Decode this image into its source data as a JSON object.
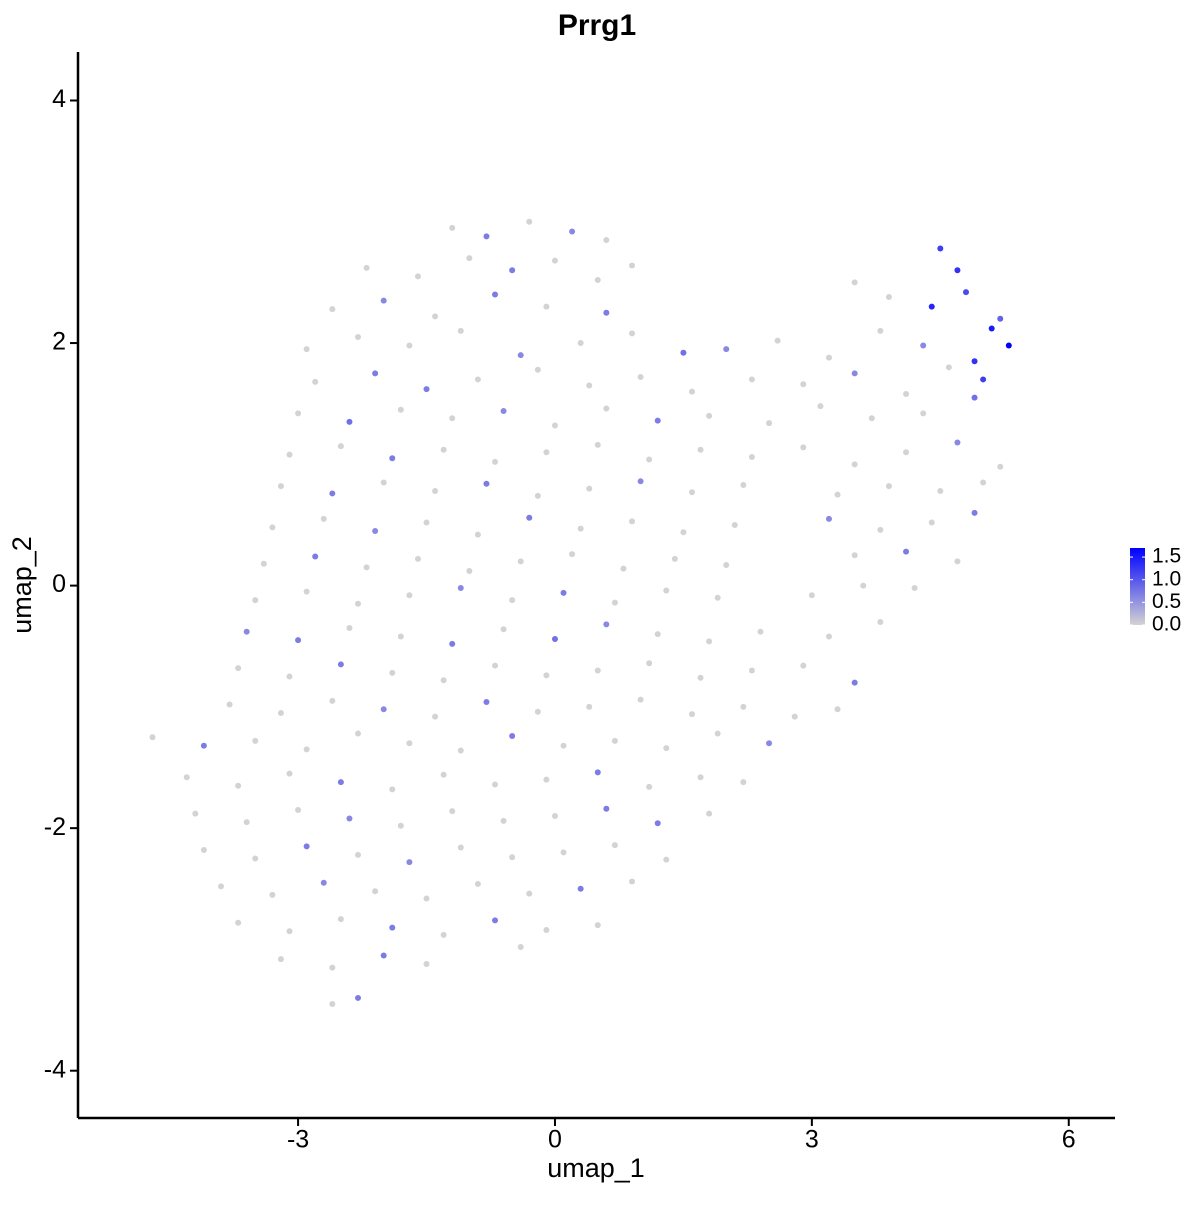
{
  "chart_data": {
    "type": "scatter",
    "title": "Prrg1",
    "x_label": "umap_1",
    "y_label": "umap_2",
    "xlim": [
      -5.57,
      6.54
    ],
    "ylim": [
      -4.39,
      4.4
    ],
    "xticks": [
      -3,
      0,
      3,
      6
    ],
    "yticks": [
      -4,
      -2,
      0,
      2,
      4
    ],
    "color_low": "#d3d3d3",
    "color_high": "#0000ff",
    "color_lim": [
      0,
      1.7
    ],
    "color_ticks": [
      {
        "value": 0,
        "label": "0.0"
      },
      {
        "value": 0.5,
        "label": "0.5"
      },
      {
        "value": 1,
        "label": "1.0"
      },
      {
        "value": 1.5,
        "label": "1.5"
      }
    ],
    "x": [
      -1.2,
      -0.8,
      -0.3,
      0.2,
      0.6,
      -2.2,
      -1.6,
      -1.0,
      -0.5,
      0.0,
      0.5,
      0.9,
      4.5,
      4.7,
      -2.6,
      -2.0,
      -1.4,
      -0.7,
      -0.1,
      0.6,
      3.5,
      3.9,
      4.4,
      4.8,
      5.2,
      -2.9,
      -2.3,
      -1.7,
      -1.1,
      -0.4,
      0.3,
      0.9,
      1.5,
      2.0,
      2.6,
      3.2,
      3.8,
      4.3,
      4.9,
      5.3,
      5.1,
      -2.8,
      -2.1,
      -1.5,
      -0.9,
      -0.2,
      0.4,
      1.0,
      1.6,
      2.3,
      2.9,
      3.5,
      4.1,
      4.6,
      5.0,
      -3.0,
      -2.4,
      -1.8,
      -1.2,
      -0.6,
      0.0,
      0.6,
      1.2,
      1.8,
      2.5,
      3.1,
      3.7,
      4.3,
      4.9,
      -3.1,
      -2.5,
      -1.9,
      -1.3,
      -0.7,
      -0.1,
      0.5,
      1.1,
      1.7,
      2.3,
      2.9,
      3.5,
      4.1,
      4.7,
      5.2,
      -3.2,
      -2.6,
      -2.0,
      -1.4,
      -0.8,
      -0.2,
      0.4,
      1.0,
      1.6,
      2.2,
      3.3,
      3.9,
      4.5,
      5.0,
      -3.3,
      -2.7,
      -2.1,
      -1.5,
      -0.9,
      -0.3,
      0.3,
      0.9,
      1.5,
      2.1,
      3.2,
      3.8,
      4.4,
      4.9,
      -3.4,
      -2.8,
      -2.2,
      -1.6,
      -1.0,
      -0.4,
      0.2,
      0.8,
      1.4,
      2.0,
      3.5,
      4.1,
      4.7,
      -3.5,
      -2.9,
      -2.3,
      -1.7,
      -1.1,
      -0.5,
      0.1,
      0.7,
      1.3,
      1.9,
      3.0,
      3.6,
      4.2,
      -3.6,
      -3.0,
      -2.4,
      -1.8,
      -1.2,
      -0.6,
      0.0,
      0.6,
      1.2,
      1.8,
      2.4,
      3.2,
      3.8,
      -3.7,
      -3.1,
      -2.5,
      -1.9,
      -1.3,
      -0.7,
      -0.1,
      0.5,
      1.1,
      1.7,
      2.3,
      2.9,
      3.5,
      -3.8,
      -3.2,
      -2.6,
      -2.0,
      -1.4,
      -0.8,
      -0.2,
      0.4,
      1.0,
      1.6,
      2.2,
      2.8,
      3.3,
      -4.7,
      -4.1,
      -3.5,
      -2.9,
      -2.3,
      -1.7,
      -1.1,
      -0.5,
      0.1,
      0.7,
      1.3,
      1.9,
      2.5,
      -4.3,
      -3.7,
      -3.1,
      -2.5,
      -1.9,
      -1.3,
      -0.7,
      -0.1,
      0.5,
      1.1,
      1.7,
      2.2,
      -4.2,
      -3.6,
      -3.0,
      -2.4,
      -1.8,
      -1.2,
      -0.6,
      0.0,
      0.6,
      1.2,
      1.8,
      -4.1,
      -3.5,
      -2.9,
      -2.3,
      -1.7,
      -1.1,
      -0.5,
      0.1,
      0.7,
      1.3,
      -3.9,
      -3.3,
      -2.7,
      -2.1,
      -1.5,
      -0.9,
      -0.3,
      0.3,
      0.9,
      -3.7,
      -3.1,
      -2.5,
      -1.9,
      -1.3,
      -0.7,
      -0.1,
      0.5,
      -3.2,
      -2.6,
      -2.0,
      -1.5,
      -0.4,
      -2.6,
      -2.3
    ],
    "values": [
      2.95,
      2.88,
      3.0,
      2.92,
      2.85,
      2.62,
      2.55,
      2.7,
      2.6,
      2.68,
      2.52,
      2.64,
      2.78,
      2.6,
      2.28,
      2.35,
      2.22,
      2.4,
      2.3,
      2.25,
      2.5,
      2.38,
      2.3,
      2.42,
      2.2,
      1.95,
      2.05,
      1.98,
      2.1,
      1.9,
      2.0,
      2.08,
      1.92,
      1.95,
      2.02,
      1.88,
      2.1,
      1.98,
      1.85,
      1.98,
      2.12,
      1.68,
      1.75,
      1.62,
      1.7,
      1.78,
      1.65,
      1.72,
      1.6,
      1.7,
      1.66,
      1.75,
      1.58,
      1.8,
      1.7,
      1.42,
      1.35,
      1.45,
      1.38,
      1.44,
      1.32,
      1.46,
      1.36,
      1.4,
      1.34,
      1.48,
      1.38,
      1.42,
      1.55,
      1.08,
      1.15,
      1.05,
      1.12,
      1.02,
      1.1,
      1.16,
      1.04,
      1.12,
      1.06,
      1.14,
      1.0,
      1.1,
      1.18,
      0.98,
      0.82,
      0.76,
      0.85,
      0.78,
      0.84,
      0.74,
      0.8,
      0.86,
      0.77,
      0.83,
      0.75,
      0.82,
      0.78,
      0.85,
      0.48,
      0.55,
      0.45,
      0.52,
      0.42,
      0.56,
      0.47,
      0.53,
      0.44,
      0.5,
      0.55,
      0.46,
      0.52,
      0.6,
      0.18,
      0.24,
      0.15,
      0.22,
      0.12,
      0.2,
      0.26,
      0.14,
      0.22,
      0.17,
      0.25,
      0.28,
      0.2,
      -0.12,
      -0.05,
      -0.15,
      -0.08,
      -0.02,
      -0.12,
      -0.06,
      -0.14,
      -0.04,
      -0.1,
      -0.08,
      0.0,
      -0.02,
      -0.38,
      -0.45,
      -0.35,
      -0.42,
      -0.48,
      -0.36,
      -0.44,
      -0.32,
      -0.4,
      -0.46,
      -0.38,
      -0.42,
      -0.3,
      -0.68,
      -0.75,
      -0.65,
      -0.72,
      -0.78,
      -0.66,
      -0.74,
      -0.7,
      -0.64,
      -0.76,
      -0.7,
      -0.66,
      -0.8,
      -0.98,
      -1.05,
      -0.95,
      -1.02,
      -1.08,
      -0.96,
      -1.04,
      -1.0,
      -0.94,
      -1.06,
      -1.0,
      -1.08,
      -1.02,
      -1.25,
      -1.32,
      -1.28,
      -1.35,
      -1.22,
      -1.3,
      -1.36,
      -1.24,
      -1.32,
      -1.28,
      -1.34,
      -1.22,
      -1.3,
      -1.58,
      -1.65,
      -1.55,
      -1.62,
      -1.68,
      -1.56,
      -1.64,
      -1.6,
      -1.54,
      -1.66,
      -1.58,
      -1.62,
      -1.88,
      -1.95,
      -1.85,
      -1.92,
      -1.98,
      -1.86,
      -1.94,
      -1.9,
      -1.84,
      -1.96,
      -1.88,
      -2.18,
      -2.25,
      -2.15,
      -2.22,
      -2.28,
      -2.16,
      -2.24,
      -2.2,
      -2.14,
      -2.26,
      -2.48,
      -2.55,
      -2.45,
      -2.52,
      -2.58,
      -2.46,
      -2.54,
      -2.5,
      -2.44,
      -2.78,
      -2.85,
      -2.75,
      -2.82,
      -2.88,
      -2.76,
      -2.84,
      -2.8,
      -3.08,
      -3.15,
      -3.05,
      -3.12,
      -2.98,
      -3.45,
      -3.4
    ],
    "expression": [
      0,
      0.7,
      0,
      0.6,
      0,
      0,
      0,
      0,
      0.7,
      0,
      0,
      0,
      1.2,
      1.3,
      0,
      0.6,
      0,
      0.7,
      0,
      0.7,
      0,
      0,
      1.4,
      1.1,
      0.9,
      0,
      0,
      0,
      0,
      0.6,
      0,
      0,
      0.8,
      0.6,
      0,
      0,
      0,
      0.6,
      1.3,
      1.7,
      1.5,
      0,
      0.7,
      0.7,
      0,
      0,
      0,
      0,
      0,
      0,
      0,
      0.6,
      0,
      0,
      1.2,
      0,
      0.8,
      0,
      0,
      0.6,
      0,
      0,
      0.7,
      0,
      0,
      0,
      0,
      0,
      0.8,
      0,
      0,
      0.7,
      0,
      0,
      0,
      0,
      0,
      0,
      0,
      0,
      0,
      0,
      0.6,
      0,
      0,
      0.7,
      0,
      0,
      0.7,
      0,
      0,
      0.6,
      0,
      0,
      0,
      0,
      0,
      0,
      0,
      0,
      0.6,
      0,
      0,
      0.7,
      0,
      0,
      0,
      0,
      0.6,
      0,
      0,
      0.7,
      0,
      0.7,
      0,
      0,
      0,
      0,
      0,
      0,
      0,
      0,
      0,
      0.7,
      0,
      0,
      0,
      0,
      0,
      0.6,
      0,
      0.7,
      0,
      0,
      0,
      0,
      0,
      0,
      0.6,
      0.7,
      0,
      0,
      0.7,
      0,
      0.8,
      0.6,
      0,
      0,
      0,
      0,
      0,
      0,
      0,
      0.7,
      0,
      0,
      0,
      0,
      0,
      0,
      0,
      0,
      0,
      0.7,
      0,
      0,
      0,
      0.6,
      0,
      0.7,
      0,
      0,
      0,
      0,
      0,
      0,
      0,
      0,
      0.7,
      0,
      0,
      0,
      0,
      0,
      0.7,
      0,
      0,
      0,
      0,
      0.6,
      0,
      0,
      0,
      0.7,
      0,
      0,
      0,
      0,
      0.7,
      0,
      0,
      0,
      0,
      0,
      0,
      0.6,
      0,
      0,
      0,
      0,
      0.7,
      0.7,
      0,
      0,
      0,
      0.7,
      0,
      0.6,
      0,
      0,
      0,
      0,
      0,
      0,
      0,
      0.6,
      0,
      0,
      0,
      0,
      0.7,
      0,
      0,
      0,
      0,
      0.7,
      0,
      0.7,
      0,
      0,
      0,
      0,
      0.7,
      0,
      0,
      0,
      0.7
    ]
  }
}
